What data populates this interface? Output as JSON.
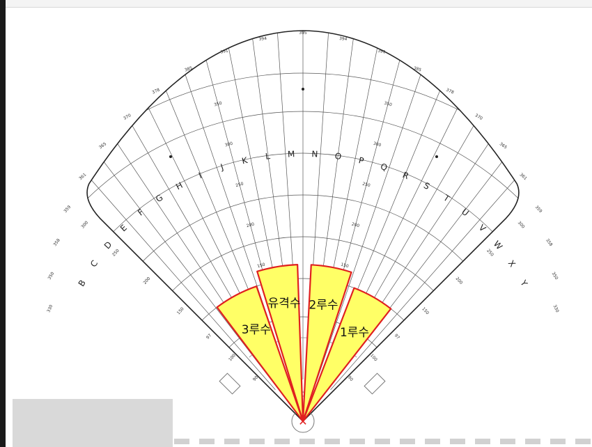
{
  "field": {
    "letters": [
      "B",
      "C",
      "D",
      "E",
      "F",
      "G",
      "H",
      "I",
      "J",
      "K",
      "L",
      "M",
      "N",
      "O",
      "P",
      "Q",
      "R",
      "S",
      "T",
      "U",
      "V",
      "W",
      "X",
      "Y"
    ],
    "fence_distances": [
      "330",
      "350",
      "358",
      "359",
      "361",
      "365",
      "370",
      "378",
      "385",
      "391",
      "394",
      "395",
      "394",
      "391",
      "385",
      "378",
      "370",
      "365",
      "361",
      "359",
      "358",
      "350",
      "330"
    ],
    "arc_labels": [
      "350",
      "300",
      "250",
      "200",
      "150"
    ],
    "line_labels": [
      "90",
      "100",
      "97",
      "150",
      "200",
      "250",
      "300"
    ]
  },
  "zones": [
    {
      "label": "3루수",
      "fill": "#ffff66",
      "stroke": "#e02020"
    },
    {
      "label": "유격수",
      "fill": "#ffff66",
      "stroke": "#e02020"
    },
    {
      "label": "2루수",
      "fill": "#ffff66",
      "stroke": "#e02020"
    },
    {
      "label": "1루수",
      "fill": "#ffff66",
      "stroke": "#e02020"
    }
  ],
  "home_marker": {
    "symbol": "✕",
    "color": "#e02020"
  }
}
